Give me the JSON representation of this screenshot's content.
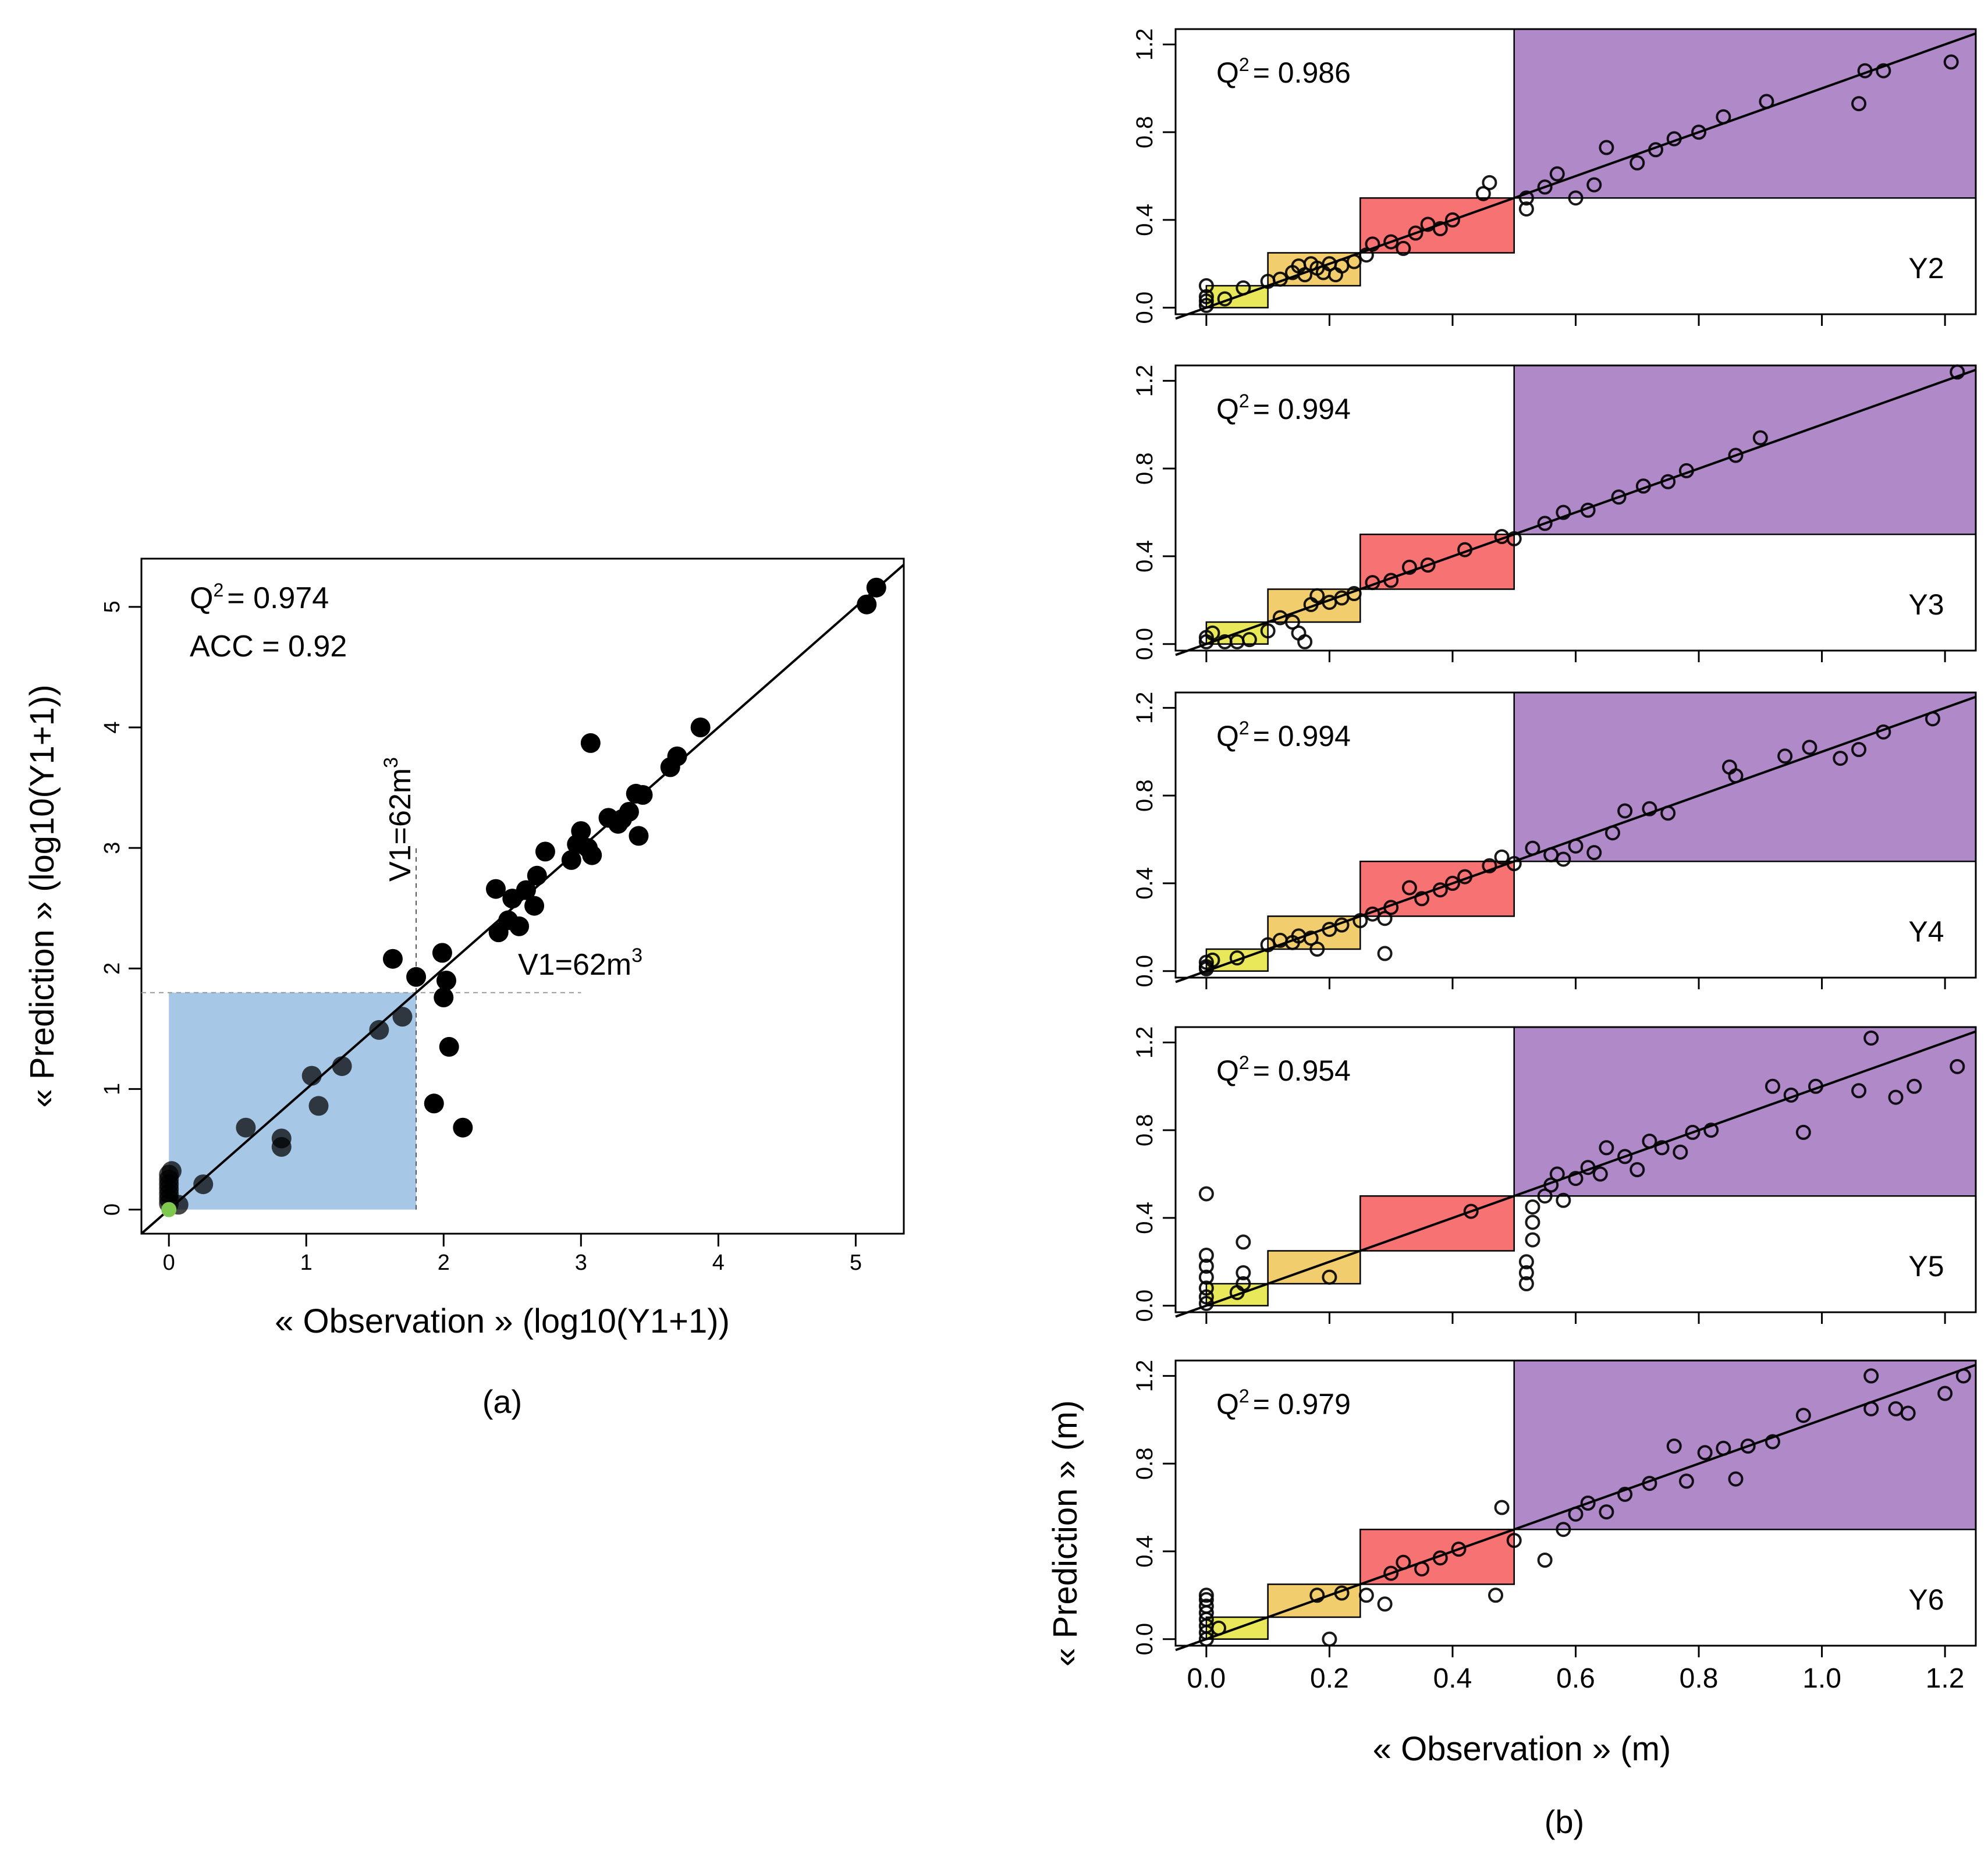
{
  "figure": {
    "panel_a_caption": "(a)",
    "panel_b_caption": "(b)"
  },
  "chart_data": [
    {
      "type": "scatter",
      "panel": "a",
      "xlabel": "« Observation » (log10(Y1+1))",
      "ylabel": "« Prediction » (log10(Y1+1))",
      "xlim": [
        -0.2,
        5.35
      ],
      "ylim": [
        -0.2,
        5.4
      ],
      "xticks": [
        0,
        1,
        2,
        3,
        4,
        5
      ],
      "yticks": [
        0,
        1,
        2,
        3,
        4,
        5
      ],
      "grid": false,
      "annotations": {
        "q2": "= 0.974",
        "acc": "ACC = 0.92",
        "vertical_label": "V1=62m",
        "horizontal_label": "V1=62m",
        "superscript_3": "3",
        "superscript_2": "2",
        "q_letter": "Q"
      },
      "threshold": 1.8,
      "highlight_color": "#a7c7e7",
      "point_color": "#000000",
      "special_point": {
        "x": 0,
        "y": 0,
        "color": "#7ec850"
      },
      "diagonal": {
        "from": [
          -0.2,
          -0.2
        ],
        "to": [
          5.35,
          5.35
        ]
      },
      "points": [
        [
          0,
          0.05
        ],
        [
          0,
          0.09
        ],
        [
          0,
          0.13
        ],
        [
          0,
          0.17
        ],
        [
          0,
          0.21
        ],
        [
          0,
          0.25
        ],
        [
          0,
          0.29
        ],
        [
          0.02,
          0.32
        ],
        [
          0.07,
          0.04
        ],
        [
          0.25,
          0.21
        ],
        [
          0.56,
          0.68
        ],
        [
          0.82,
          0.52
        ],
        [
          0.82,
          0.59
        ],
        [
          1.04,
          1.11
        ],
        [
          1.09,
          0.86
        ],
        [
          1.26,
          1.19
        ],
        [
          1.53,
          1.49
        ],
        [
          1.63,
          2.08
        ],
        [
          1.7,
          1.6
        ],
        [
          1.8,
          1.93
        ],
        [
          1.93,
          0.88
        ],
        [
          1.99,
          2.13
        ],
        [
          2.0,
          1.76
        ],
        [
          2.02,
          1.9
        ],
        [
          2.04,
          1.35
        ],
        [
          2.14,
          0.68
        ],
        [
          2.38,
          2.66
        ],
        [
          2.4,
          2.3
        ],
        [
          2.47,
          2.4
        ],
        [
          2.5,
          2.58
        ],
        [
          2.55,
          2.35
        ],
        [
          2.6,
          2.65
        ],
        [
          2.66,
          2.52
        ],
        [
          2.68,
          2.77
        ],
        [
          2.74,
          2.97
        ],
        [
          2.93,
          2.9
        ],
        [
          2.97,
          3.03
        ],
        [
          3.0,
          3.14
        ],
        [
          3.05,
          3.0
        ],
        [
          3.07,
          3.87
        ],
        [
          3.08,
          2.94
        ],
        [
          3.2,
          3.25
        ],
        [
          3.27,
          3.2
        ],
        [
          3.3,
          3.24
        ],
        [
          3.35,
          3.3
        ],
        [
          3.4,
          3.45
        ],
        [
          3.42,
          3.1
        ],
        [
          3.45,
          3.44
        ],
        [
          3.65,
          3.67
        ],
        [
          3.7,
          3.76
        ],
        [
          3.87,
          4.0
        ],
        [
          5.08,
          5.02
        ],
        [
          5.15,
          5.16
        ]
      ]
    },
    {
      "type": "scatter",
      "panel": "b",
      "xlabel": "« Observation » (m)",
      "ylabel": "« Prediction » (m)",
      "xlim": [
        -0.05,
        1.25
      ],
      "ylim": [
        -0.03,
        1.27
      ],
      "xticks": [
        "0.0",
        "0.2",
        "0.4",
        "0.6",
        "0.8",
        "1.0",
        "1.2"
      ],
      "yticks": [
        "0.0",
        "0.4",
        "0.8",
        "1.2"
      ],
      "grid": false,
      "classes": [
        {
          "x0": 0.0,
          "x1": 0.1,
          "y0": 0.0,
          "y1": 0.1,
          "color": "#e8e85a"
        },
        {
          "x0": 0.1,
          "x1": 0.25,
          "y0": 0.1,
          "y1": 0.25,
          "color": "#f2cd6e"
        },
        {
          "x0": 0.25,
          "x1": 0.5,
          "y0": 0.25,
          "y1": 0.5,
          "color": "#f77272"
        },
        {
          "x0": 0.5,
          "x1": 1.25,
          "y0": 0.5,
          "y1": 1.27,
          "color": "#b089c8"
        }
      ],
      "subplots": [
        {
          "name": "Y2",
          "q_letter": "Q",
          "superscript_2": "2",
          "q2": "= 0.986",
          "points": [
            [
              0,
              0.01
            ],
            [
              0,
              0.03
            ],
            [
              0,
              0.05
            ],
            [
              0,
              0.1
            ],
            [
              0.03,
              0.04
            ],
            [
              0.06,
              0.09
            ],
            [
              0.1,
              0.12
            ],
            [
              0.12,
              0.13
            ],
            [
              0.14,
              0.16
            ],
            [
              0.15,
              0.19
            ],
            [
              0.16,
              0.15
            ],
            [
              0.17,
              0.2
            ],
            [
              0.18,
              0.18
            ],
            [
              0.19,
              0.16
            ],
            [
              0.2,
              0.2
            ],
            [
              0.21,
              0.15
            ],
            [
              0.22,
              0.19
            ],
            [
              0.24,
              0.21
            ],
            [
              0.26,
              0.24
            ],
            [
              0.27,
              0.29
            ],
            [
              0.3,
              0.3
            ],
            [
              0.32,
              0.27
            ],
            [
              0.34,
              0.34
            ],
            [
              0.36,
              0.38
            ],
            [
              0.38,
              0.36
            ],
            [
              0.4,
              0.4
            ],
            [
              0.45,
              0.52
            ],
            [
              0.46,
              0.57
            ],
            [
              0.52,
              0.45
            ],
            [
              0.52,
              0.5
            ],
            [
              0.55,
              0.55
            ],
            [
              0.57,
              0.61
            ],
            [
              0.6,
              0.5
            ],
            [
              0.63,
              0.56
            ],
            [
              0.65,
              0.73
            ],
            [
              0.7,
              0.66
            ],
            [
              0.73,
              0.72
            ],
            [
              0.76,
              0.77
            ],
            [
              0.8,
              0.8
            ],
            [
              0.84,
              0.87
            ],
            [
              0.91,
              0.94
            ],
            [
              1.06,
              0.93
            ],
            [
              1.07,
              1.08
            ],
            [
              1.1,
              1.08
            ],
            [
              1.21,
              1.12
            ]
          ]
        },
        {
          "name": "Y3",
          "q_letter": "Q",
          "superscript_2": "2",
          "q2": "= 0.994",
          "points": [
            [
              0,
              0.01
            ],
            [
              0,
              0.03
            ],
            [
              0.01,
              0.05
            ],
            [
              0.03,
              0.01
            ],
            [
              0.05,
              0.01
            ],
            [
              0.07,
              0.02
            ],
            [
              0.1,
              0.06
            ],
            [
              0.12,
              0.12
            ],
            [
              0.14,
              0.1
            ],
            [
              0.15,
              0.05
            ],
            [
              0.16,
              0.01
            ],
            [
              0.17,
              0.18
            ],
            [
              0.18,
              0.22
            ],
            [
              0.2,
              0.19
            ],
            [
              0.22,
              0.21
            ],
            [
              0.24,
              0.23
            ],
            [
              0.27,
              0.28
            ],
            [
              0.3,
              0.29
            ],
            [
              0.33,
              0.35
            ],
            [
              0.36,
              0.36
            ],
            [
              0.42,
              0.43
            ],
            [
              0.48,
              0.49
            ],
            [
              0.5,
              0.48
            ],
            [
              0.55,
              0.55
            ],
            [
              0.58,
              0.6
            ],
            [
              0.62,
              0.61
            ],
            [
              0.67,
              0.67
            ],
            [
              0.71,
              0.72
            ],
            [
              0.75,
              0.74
            ],
            [
              0.78,
              0.79
            ],
            [
              0.86,
              0.86
            ],
            [
              0.9,
              0.94
            ],
            [
              1.22,
              1.24
            ]
          ]
        },
        {
          "name": "Y4",
          "q_letter": "Q",
          "superscript_2": "2",
          "q2": "= 0.994",
          "points": [
            [
              0,
              0.01
            ],
            [
              0,
              0.02
            ],
            [
              0,
              0.04
            ],
            [
              0.01,
              0.05
            ],
            [
              0.05,
              0.06
            ],
            [
              0.1,
              0.12
            ],
            [
              0.12,
              0.14
            ],
            [
              0.14,
              0.13
            ],
            [
              0.15,
              0.16
            ],
            [
              0.17,
              0.15
            ],
            [
              0.18,
              0.1
            ],
            [
              0.2,
              0.19
            ],
            [
              0.22,
              0.21
            ],
            [
              0.25,
              0.23
            ],
            [
              0.27,
              0.26
            ],
            [
              0.29,
              0.24
            ],
            [
              0.3,
              0.29
            ],
            [
              0.29,
              0.08
            ],
            [
              0.33,
              0.38
            ],
            [
              0.35,
              0.33
            ],
            [
              0.38,
              0.37
            ],
            [
              0.4,
              0.4
            ],
            [
              0.42,
              0.43
            ],
            [
              0.46,
              0.48
            ],
            [
              0.48,
              0.52
            ],
            [
              0.5,
              0.49
            ],
            [
              0.53,
              0.56
            ],
            [
              0.56,
              0.53
            ],
            [
              0.58,
              0.51
            ],
            [
              0.6,
              0.57
            ],
            [
              0.63,
              0.54
            ],
            [
              0.66,
              0.63
            ],
            [
              0.68,
              0.73
            ],
            [
              0.72,
              0.74
            ],
            [
              0.75,
              0.72
            ],
            [
              0.85,
              0.93
            ],
            [
              0.86,
              0.89
            ],
            [
              0.94,
              0.98
            ],
            [
              0.98,
              1.02
            ],
            [
              1.03,
              0.97
            ],
            [
              1.06,
              1.01
            ],
            [
              1.1,
              1.09
            ],
            [
              1.18,
              1.15
            ]
          ]
        },
        {
          "name": "Y5",
          "q_letter": "Q",
          "superscript_2": "2",
          "q2": "= 0.954",
          "points": [
            [
              0,
              0.01
            ],
            [
              0,
              0.04
            ],
            [
              0,
              0.08
            ],
            [
              0,
              0.13
            ],
            [
              0,
              0.18
            ],
            [
              0,
              0.23
            ],
            [
              0,
              0.51
            ],
            [
              0.05,
              0.06
            ],
            [
              0.06,
              0.1
            ],
            [
              0.06,
              0.15
            ],
            [
              0.06,
              0.29
            ],
            [
              0.2,
              0.13
            ],
            [
              0.43,
              0.43
            ],
            [
              0.52,
              0.1
            ],
            [
              0.52,
              0.15
            ],
            [
              0.52,
              0.2
            ],
            [
              0.53,
              0.3
            ],
            [
              0.53,
              0.38
            ],
            [
              0.53,
              0.45
            ],
            [
              0.55,
              0.5
            ],
            [
              0.56,
              0.55
            ],
            [
              0.57,
              0.6
            ],
            [
              0.58,
              0.48
            ],
            [
              0.6,
              0.58
            ],
            [
              0.62,
              0.63
            ],
            [
              0.64,
              0.6
            ],
            [
              0.65,
              0.72
            ],
            [
              0.68,
              0.68
            ],
            [
              0.7,
              0.62
            ],
            [
              0.72,
              0.75
            ],
            [
              0.74,
              0.72
            ],
            [
              0.77,
              0.7
            ],
            [
              0.79,
              0.79
            ],
            [
              0.82,
              0.8
            ],
            [
              0.92,
              1.0
            ],
            [
              0.95,
              0.96
            ],
            [
              0.97,
              0.79
            ],
            [
              0.99,
              1.0
            ],
            [
              1.06,
              0.98
            ],
            [
              1.08,
              1.22
            ],
            [
              1.12,
              0.95
            ],
            [
              1.15,
              1.0
            ],
            [
              1.22,
              1.09
            ]
          ]
        },
        {
          "name": "Y6",
          "q_letter": "Q",
          "superscript_2": "2",
          "q2": "= 0.979",
          "points": [
            [
              0,
              0.0
            ],
            [
              0,
              0.03
            ],
            [
              0,
              0.06
            ],
            [
              0,
              0.09
            ],
            [
              0,
              0.12
            ],
            [
              0,
              0.15
            ],
            [
              0,
              0.18
            ],
            [
              0,
              0.2
            ],
            [
              0.02,
              0.05
            ],
            [
              0.18,
              0.2
            ],
            [
              0.2,
              0.0
            ],
            [
              0.22,
              0.21
            ],
            [
              0.26,
              0.2
            ],
            [
              0.29,
              0.16
            ],
            [
              0.3,
              0.3
            ],
            [
              0.32,
              0.35
            ],
            [
              0.35,
              0.32
            ],
            [
              0.38,
              0.37
            ],
            [
              0.41,
              0.41
            ],
            [
              0.47,
              0.2
            ],
            [
              0.48,
              0.6
            ],
            [
              0.5,
              0.45
            ],
            [
              0.55,
              0.36
            ],
            [
              0.58,
              0.5
            ],
            [
              0.6,
              0.57
            ],
            [
              0.62,
              0.62
            ],
            [
              0.65,
              0.58
            ],
            [
              0.68,
              0.66
            ],
            [
              0.72,
              0.71
            ],
            [
              0.76,
              0.88
            ],
            [
              0.78,
              0.72
            ],
            [
              0.81,
              0.85
            ],
            [
              0.84,
              0.87
            ],
            [
              0.86,
              0.73
            ],
            [
              0.88,
              0.88
            ],
            [
              0.92,
              0.9
            ],
            [
              0.97,
              1.02
            ],
            [
              1.08,
              1.05
            ],
            [
              1.08,
              1.2
            ],
            [
              1.12,
              1.05
            ],
            [
              1.14,
              1.03
            ],
            [
              1.2,
              1.12
            ],
            [
              1.23,
              1.2
            ]
          ]
        }
      ]
    }
  ]
}
